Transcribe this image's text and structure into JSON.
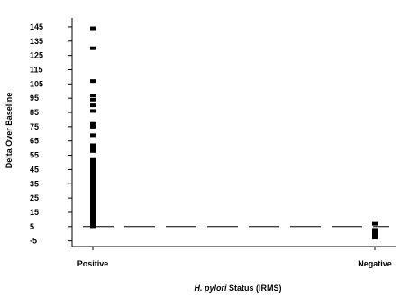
{
  "chart_data": {
    "type": "scatter",
    "title": "",
    "xlabel_italic": "H. pylori",
    "xlabel_rest": " Status (IRMS)",
    "ylabel": "Delta Over Baseline",
    "categories": [
      "Positive",
      "Negative"
    ],
    "yticks": [
      145,
      135,
      125,
      115,
      105,
      95,
      85,
      75,
      65,
      55,
      45,
      35,
      25,
      15,
      5,
      -5
    ],
    "ylim": [
      -9,
      150
    ],
    "cutoff": 5,
    "series": [
      {
        "category": "Positive",
        "points": [
          144,
          130,
          107,
          97,
          94,
          90,
          86,
          77,
          75,
          69,
          62,
          60,
          58
        ],
        "dense_range": [
          4,
          53
        ]
      },
      {
        "category": "Negative",
        "points": [
          7
        ],
        "dense_range": [
          -4,
          4
        ]
      }
    ],
    "grid": false,
    "colors": {
      "marks": "#000000",
      "background": "#ffffff"
    }
  }
}
